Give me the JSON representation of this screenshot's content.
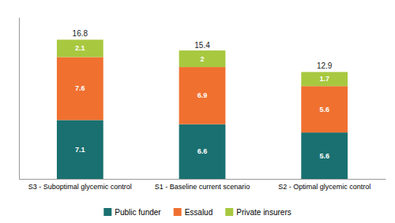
{
  "chart_data": {
    "type": "bar",
    "stacked": true,
    "categories": [
      "S3 - Suboptimal glycemic control",
      "S1 - Baseline current scenario",
      "S2 - Optimal glycemic control"
    ],
    "series": [
      {
        "name": "Public funder",
        "color": "#1a7070",
        "values": [
          7.1,
          6.6,
          5.6
        ]
      },
      {
        "name": "Essalud",
        "color": "#f07030",
        "values": [
          7.6,
          6.9,
          5.6
        ]
      },
      {
        "name": "Private insurers",
        "color": "#a8c840",
        "values": [
          2.1,
          2.0,
          1.7
        ]
      }
    ],
    "totals": [
      16.8,
      15.4,
      12.9
    ],
    "ylim": [
      0,
      19.5
    ],
    "yticks": [],
    "grid": false,
    "legend": "bottom",
    "data_labels": true,
    "tick_labels": "x"
  }
}
